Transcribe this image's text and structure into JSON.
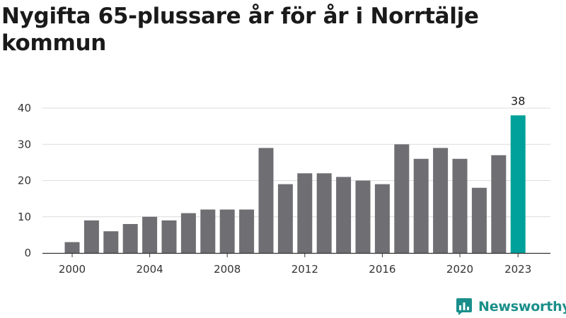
{
  "brand": {
    "name": "Newsworthy",
    "icon": "newsworthy-logo-icon"
  },
  "colors": {
    "bar": "#6f6e73",
    "highlight": "#00a19a",
    "grid": "#dcdcdc",
    "axis": "#333333",
    "brand": "#1a8f8a"
  },
  "chart_data": {
    "type": "bar",
    "title": "Nygifta 65-plussare år för år i Norrtälje kommun",
    "xlabel": "",
    "ylabel": "",
    "x": [
      2000,
      2001,
      2002,
      2003,
      2004,
      2005,
      2006,
      2007,
      2008,
      2009,
      2010,
      2011,
      2012,
      2013,
      2014,
      2015,
      2016,
      2017,
      2018,
      2019,
      2020,
      2021,
      2022,
      2023
    ],
    "values": [
      3,
      9,
      6,
      8,
      10,
      9,
      11,
      12,
      12,
      12,
      29,
      19,
      22,
      22,
      21,
      20,
      19,
      30,
      26,
      29,
      26,
      18,
      27,
      38
    ],
    "xticks": [
      2000,
      2004,
      2008,
      2012,
      2016,
      2020,
      2023
    ],
    "yticks": [
      0,
      10,
      20,
      30,
      40
    ],
    "ylim": [
      0,
      40
    ],
    "highlight": {
      "x": 2023,
      "label": "38"
    },
    "grid": true
  }
}
